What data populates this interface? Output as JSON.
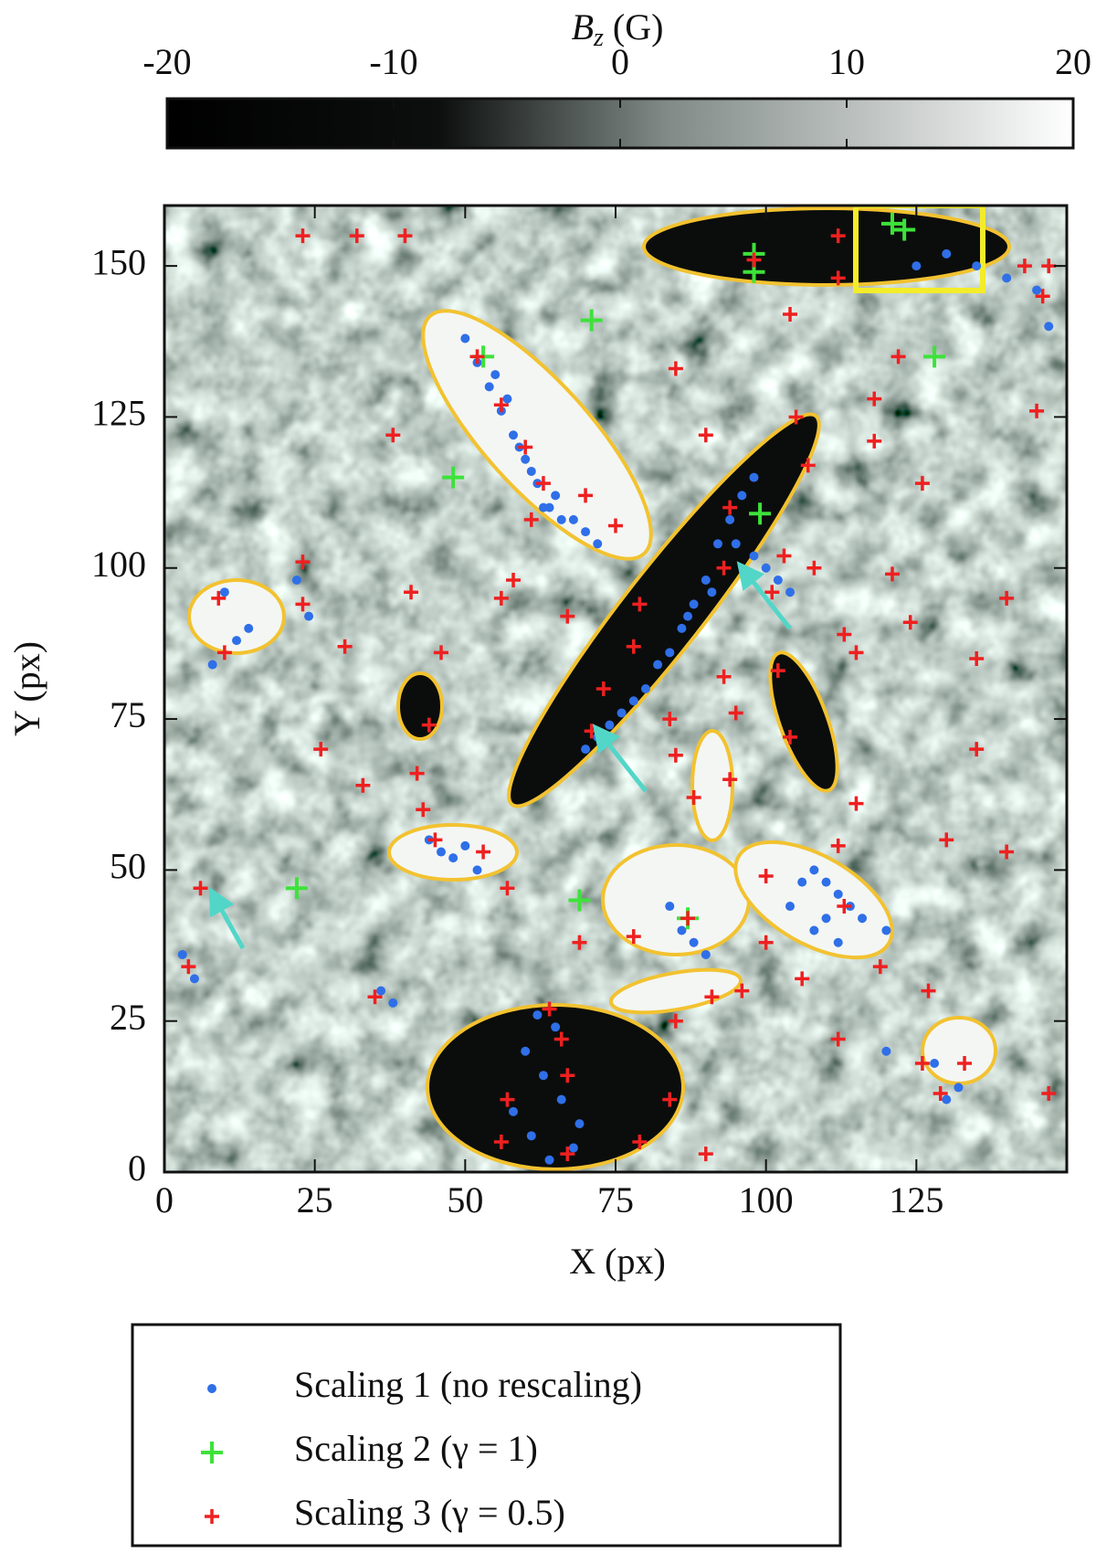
{
  "chart_data": {
    "type": "scatter",
    "xlabel": "X (px)",
    "ylabel": "Y (px)",
    "xlim": [
      0,
      150
    ],
    "ylim": [
      0,
      160
    ],
    "xticks": [
      0,
      25,
      50,
      75,
      100,
      125
    ],
    "yticks": [
      0,
      25,
      50,
      75,
      100,
      125,
      150
    ],
    "colorbar": {
      "label": "B",
      "label_sub": "z",
      "label_unit": "(G)",
      "clim": [
        -20,
        20
      ],
      "ticks": [
        -20,
        -10,
        0,
        10,
        20
      ],
      "colormap": "gray"
    },
    "legend": "bottom",
    "series": [
      {
        "name": "Scaling 1 (no rescaling)",
        "color": "#2f6fe8",
        "marker": "dot",
        "x": [
          50,
          52,
          54,
          56,
          58,
          60,
          62,
          64,
          66,
          68,
          70,
          72,
          55,
          57,
          59,
          61,
          63,
          65,
          96,
          94,
          92,
          90,
          88,
          86,
          84,
          82,
          80,
          78,
          76,
          74,
          72,
          70,
          98,
          95,
          91,
          87,
          100,
          102,
          104,
          98,
          108,
          110,
          112,
          114,
          116,
          120,
          125,
          130,
          135,
          140,
          145,
          147,
          10,
          12,
          8,
          14,
          22,
          24,
          60,
          63,
          66,
          69,
          62,
          65,
          68,
          58,
          61,
          64,
          84,
          86,
          88,
          90,
          104,
          106,
          108,
          110,
          112,
          44,
          46,
          48,
          50,
          52,
          3,
          5,
          36,
          38,
          130,
          132,
          120,
          128
        ],
        "values": [
          138,
          134,
          130,
          126,
          122,
          118,
          114,
          110,
          108,
          108,
          106,
          104,
          132,
          128,
          120,
          116,
          110,
          112,
          112,
          108,
          104,
          98,
          94,
          90,
          86,
          84,
          80,
          78,
          76,
          74,
          72,
          70,
          115,
          104,
          96,
          92,
          100,
          98,
          96,
          102,
          50,
          48,
          46,
          44,
          42,
          40,
          150,
          152,
          150,
          148,
          146,
          140,
          96,
          88,
          84,
          90,
          98,
          92,
          20,
          16,
          12,
          8,
          26,
          24,
          4,
          10,
          6,
          2,
          44,
          40,
          38,
          36,
          44,
          48,
          40,
          42,
          38,
          55,
          53,
          52,
          54,
          50,
          36,
          32,
          30,
          28,
          12,
          14,
          20,
          18
        ]
      },
      {
        "name": "Scaling 2 (γ = 1)",
        "color": "#3de23a",
        "marker": "plus",
        "x": [
          53,
          98,
          98,
          121,
          123,
          128,
          99,
          48,
          71,
          69,
          22,
          87
        ],
        "values": [
          135,
          152,
          149,
          157,
          156,
          135,
          109,
          115,
          141,
          45,
          47,
          42
        ]
      },
      {
        "name": "Scaling 3 (γ = 0.5)",
        "color": "#ee2020",
        "marker": "plus-small",
        "x": [
          23,
          32,
          40,
          52,
          56,
          60,
          63,
          70,
          75,
          61,
          94,
          93,
          85,
          90,
          105,
          107,
          118,
          118,
          126,
          122,
          143,
          147,
          146,
          145,
          112,
          112,
          98,
          104,
          9,
          10,
          23,
          23,
          38,
          41,
          30,
          46,
          58,
          56,
          67,
          79,
          78,
          73,
          71,
          84,
          85,
          93,
          95,
          101,
          103,
          108,
          102,
          104,
          113,
          115,
          121,
          124,
          135,
          135,
          140,
          44,
          42,
          43,
          33,
          26,
          6,
          45,
          53,
          57,
          4,
          35,
          69,
          78,
          87,
          100,
          113,
          100,
          106,
          119,
          127,
          91,
          96,
          85,
          64,
          66,
          67,
          57,
          56,
          67,
          79,
          84,
          90,
          112,
          126,
          133,
          129,
          147,
          88,
          94,
          130,
          140,
          112,
          115
        ],
        "values": [
          155,
          155,
          155,
          135,
          127,
          120,
          114,
          112,
          107,
          108,
          110,
          100,
          133,
          122,
          125,
          117,
          128,
          121,
          114,
          135,
          150,
          150,
          145,
          126,
          155,
          148,
          151,
          142,
          95,
          86,
          101,
          94,
          122,
          96,
          87,
          86,
          98,
          95,
          92,
          94,
          87,
          80,
          73,
          75,
          69,
          82,
          76,
          96,
          102,
          100,
          83,
          72,
          89,
          86,
          99,
          91,
          85,
          70,
          95,
          74,
          66,
          60,
          64,
          70,
          47,
          55,
          53,
          47,
          34,
          29,
          38,
          39,
          42,
          49,
          44,
          38,
          32,
          34,
          30,
          29,
          30,
          25,
          27,
          22,
          16,
          12,
          5,
          3,
          5,
          12,
          3,
          22,
          18,
          18,
          13,
          13,
          62,
          65,
          55,
          53,
          54,
          61
        ]
      }
    ]
  }
}
